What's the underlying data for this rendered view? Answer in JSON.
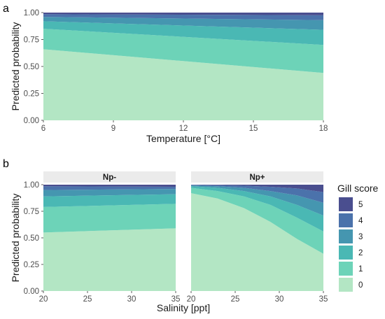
{
  "colors": {
    "0": "#b3e6c4",
    "1": "#6dd3b8",
    "2": "#4ab8b4",
    "3": "#4596b0",
    "4": "#4b72ab",
    "5": "#4a4e8f"
  },
  "legend": {
    "title": "Gill score",
    "entries": [
      "5",
      "4",
      "3",
      "2",
      "1",
      "0"
    ]
  },
  "chart_data": [
    {
      "panel_label": "a",
      "type": "area",
      "stacked": true,
      "xlabel": "Temperature [°C]",
      "ylabel": "Predicted probability",
      "xlim": [
        6,
        18
      ],
      "ylim": [
        0,
        1
      ],
      "xticks": [
        "6",
        "9",
        "12",
        "15",
        "18"
      ],
      "yticks": [
        "0.00",
        "0.25",
        "0.50",
        "0.75",
        "1.00"
      ],
      "x": [
        6,
        18
      ],
      "series": [
        {
          "name": "0",
          "values": [
            0.66,
            0.44
          ]
        },
        {
          "name": "1",
          "values": [
            0.19,
            0.26
          ]
        },
        {
          "name": "2",
          "values": [
            0.07,
            0.14
          ]
        },
        {
          "name": "3",
          "values": [
            0.04,
            0.09
          ]
        },
        {
          "name": "4",
          "values": [
            0.025,
            0.045
          ]
        },
        {
          "name": "5",
          "values": [
            0.015,
            0.025
          ]
        }
      ]
    },
    {
      "panel_label": "b",
      "facet": "Np-",
      "type": "area",
      "stacked": true,
      "xlabel": "Salinity [ppt]",
      "ylabel": "Predicted probability",
      "xlim": [
        20,
        35
      ],
      "ylim": [
        0,
        1
      ],
      "xticks": [
        "20",
        "25",
        "30",
        "35"
      ],
      "yticks": [
        "0.00",
        "0.25",
        "0.50",
        "0.75",
        "1.00"
      ],
      "x": [
        20,
        35
      ],
      "series": [
        {
          "name": "0",
          "values": [
            0.55,
            0.59
          ]
        },
        {
          "name": "1",
          "values": [
            0.24,
            0.23
          ]
        },
        {
          "name": "2",
          "values": [
            0.1,
            0.09
          ]
        },
        {
          "name": "3",
          "values": [
            0.06,
            0.05
          ]
        },
        {
          "name": "4",
          "values": [
            0.035,
            0.02
          ]
        },
        {
          "name": "5",
          "values": [
            0.015,
            0.01
          ]
        }
      ]
    },
    {
      "facet": "Np+",
      "type": "area",
      "stacked": true,
      "xlabel": "Salinity [ppt]",
      "xlim": [
        20,
        35
      ],
      "ylim": [
        0,
        1
      ],
      "xticks": [
        "20",
        "25",
        "30",
        "35"
      ],
      "x": [
        20,
        23,
        26,
        29,
        32,
        35
      ],
      "series": [
        {
          "name": "0",
          "values": [
            0.92,
            0.87,
            0.78,
            0.65,
            0.49,
            0.35
          ]
        },
        {
          "name": "1",
          "values": [
            0.05,
            0.07,
            0.11,
            0.16,
            0.2,
            0.21
          ]
        },
        {
          "name": "2",
          "values": [
            0.015,
            0.03,
            0.05,
            0.08,
            0.12,
            0.15
          ]
        },
        {
          "name": "3",
          "values": [
            0.008,
            0.015,
            0.03,
            0.05,
            0.09,
            0.12
          ]
        },
        {
          "name": "4",
          "values": [
            0.005,
            0.01,
            0.02,
            0.04,
            0.065,
            0.1
          ]
        },
        {
          "name": "5",
          "values": [
            0.002,
            0.005,
            0.01,
            0.02,
            0.035,
            0.07
          ]
        }
      ]
    }
  ]
}
